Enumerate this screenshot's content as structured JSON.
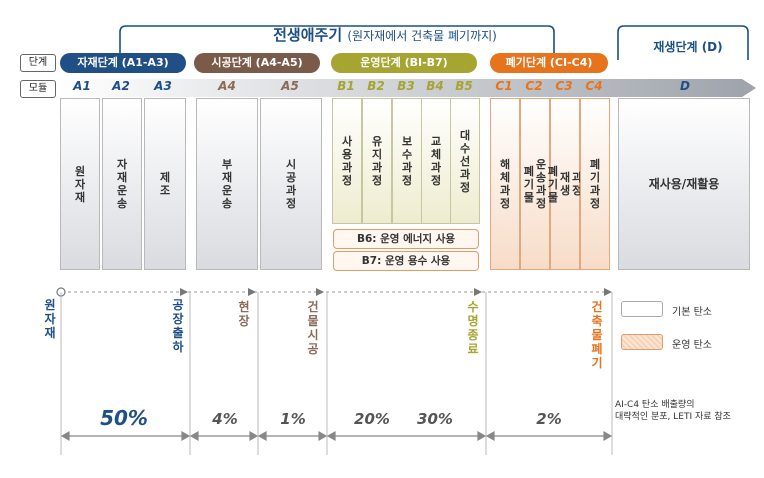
{
  "header": {
    "title_main": "전생애주기",
    "title_sub": "(원자재에서 건축물 폐기까지)",
    "regen_title": "재생단계 (D)"
  },
  "row_labels": {
    "stage": "단계",
    "module": "모듈"
  },
  "stages": [
    {
      "label": "자재단계 (A1-A3)",
      "color": "#1f4f85"
    },
    {
      "label": "시공단계 (A4-A5)",
      "color": "#7a5a48"
    },
    {
      "label": "운영단계 (BI-B7)",
      "color": "#a6a532"
    },
    {
      "label": "폐기단계 (CI-C4)",
      "color": "#e8731d"
    }
  ],
  "modules": [
    "A1",
    "A2",
    "A3",
    "A4",
    "A5",
    "B1",
    "B2",
    "B3",
    "B4",
    "B5",
    "C1",
    "C2",
    "C3",
    "C4",
    "D"
  ],
  "module_colors": {
    "A1_A3": "#1f4f85",
    "A4_A5": "#8a6a58",
    "B": "#a6a532",
    "C": "#e8731d",
    "D": "#1f4f85"
  },
  "processes": [
    "원자재",
    "자재운송",
    "제조",
    "부재운송",
    "시공과정",
    "사용과정",
    "유지과정",
    "보수과정",
    "교체과정",
    "대수선과정",
    "해체과정",
    "폐기물 운송과정",
    "폐기물 재생 과정",
    "폐기과정",
    "재사용/재활용"
  ],
  "operational": [
    "B6: 운영 에너지 사용",
    "B7: 운영 용수 사용"
  ],
  "milestones": [
    "원자재",
    "공장출하",
    "현장",
    "건물시공",
    "수명종료",
    "건축물폐기"
  ],
  "percentages": [
    "50%",
    "4%",
    "1%",
    "20%",
    "30%",
    "2%"
  ],
  "legend": {
    "basic": "기본 탄소",
    "operational": "운영 탄소"
  },
  "note": [
    "AI-C4 탄소 배출량의",
    "대략적인 분포, LETI 자료 참조"
  ]
}
